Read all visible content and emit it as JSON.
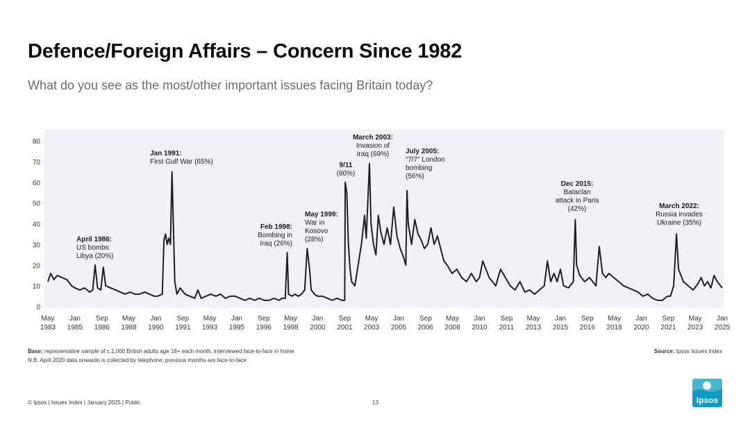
{
  "title": "Defence/Foreign Affairs – Concern Since 1982",
  "subtitle": "What do you see as the most/other important issues facing Britain today?",
  "colors": {
    "line": "#1f1f1f",
    "plot_bg": "#f1f1f6",
    "logo": "#0d9bc2"
  },
  "chart_data": {
    "type": "line",
    "title": "Defence/Foreign Affairs – Concern Since 1982",
    "ylim": [
      0,
      80
    ],
    "yticks": [
      "0",
      "10",
      "20",
      "30",
      "40",
      "50",
      "60",
      "70",
      "80"
    ],
    "xlim": [
      1983.33,
      2025.0
    ],
    "grid": false,
    "xticks": [
      {
        "month": "May",
        "year": "1983",
        "t": 1983.33
      },
      {
        "month": "Jan",
        "year": "1985",
        "t": 1985.0
      },
      {
        "month": "Sep",
        "year": "1986",
        "t": 1986.67
      },
      {
        "month": "May",
        "year": "1988",
        "t": 1988.33
      },
      {
        "month": "Jan",
        "year": "1990",
        "t": 1990.0
      },
      {
        "month": "Sep",
        "year": "1991",
        "t": 1991.67
      },
      {
        "month": "May",
        "year": "1993",
        "t": 1993.33
      },
      {
        "month": "Jan",
        "year": "1995",
        "t": 1995.0
      },
      {
        "month": "Sep",
        "year": "1996",
        "t": 1996.67
      },
      {
        "month": "May",
        "year": "1998",
        "t": 1998.33
      },
      {
        "month": "Jan",
        "year": "2000",
        "t": 2000.0
      },
      {
        "month": "Sep",
        "year": "2001",
        "t": 2001.67
      },
      {
        "month": "May",
        "year": "2003",
        "t": 2003.33
      },
      {
        "month": "Jan",
        "year": "2005",
        "t": 2005.0
      },
      {
        "month": "Sep",
        "year": "2006",
        "t": 2006.67
      },
      {
        "month": "May",
        "year": "2008",
        "t": 2008.33
      },
      {
        "month": "Jan",
        "year": "2010",
        "t": 2010.0
      },
      {
        "month": "Sep",
        "year": "2011",
        "t": 2011.67
      },
      {
        "month": "May",
        "year": "2013",
        "t": 2013.33
      },
      {
        "month": "Jan",
        "year": "2015",
        "t": 2015.0
      },
      {
        "month": "Sep",
        "year": "2016",
        "t": 2016.67
      },
      {
        "month": "May",
        "year": "2018",
        "t": 2018.33
      },
      {
        "month": "Jan",
        "year": "2020",
        "t": 2020.0
      },
      {
        "month": "Sep",
        "year": "2021",
        "t": 2021.67
      },
      {
        "month": "May",
        "year": "2023",
        "t": 2023.33
      },
      {
        "month": "Jan",
        "year": "2025",
        "t": 2025.0
      }
    ],
    "series": [
      {
        "name": "Defence/Foreign Affairs",
        "points": [
          [
            1983.33,
            12
          ],
          [
            1983.5,
            16
          ],
          [
            1983.7,
            13
          ],
          [
            1983.9,
            15
          ],
          [
            1984.2,
            14
          ],
          [
            1984.5,
            13
          ],
          [
            1984.8,
            10
          ],
          [
            1985.0,
            9
          ],
          [
            1985.3,
            8
          ],
          [
            1985.6,
            9
          ],
          [
            1985.9,
            7
          ],
          [
            1986.1,
            8
          ],
          [
            1986.25,
            20
          ],
          [
            1986.4,
            9
          ],
          [
            1986.6,
            8
          ],
          [
            1986.75,
            19
          ],
          [
            1986.9,
            10
          ],
          [
            1987.2,
            9
          ],
          [
            1987.5,
            8
          ],
          [
            1987.8,
            7
          ],
          [
            1988.1,
            6
          ],
          [
            1988.4,
            7
          ],
          [
            1988.7,
            6
          ],
          [
            1989.0,
            6
          ],
          [
            1989.3,
            7
          ],
          [
            1989.6,
            6
          ],
          [
            1989.9,
            5
          ],
          [
            1990.1,
            5
          ],
          [
            1990.4,
            6
          ],
          [
            1990.5,
            32
          ],
          [
            1990.6,
            35
          ],
          [
            1990.7,
            30
          ],
          [
            1990.8,
            33
          ],
          [
            1990.9,
            30
          ],
          [
            1991.0,
            65
          ],
          [
            1991.08,
            40
          ],
          [
            1991.17,
            12
          ],
          [
            1991.3,
            6
          ],
          [
            1991.5,
            9
          ],
          [
            1991.8,
            6
          ],
          [
            1992.1,
            5
          ],
          [
            1992.4,
            4
          ],
          [
            1992.6,
            8
          ],
          [
            1992.8,
            4
          ],
          [
            1993.1,
            5
          ],
          [
            1993.4,
            6
          ],
          [
            1993.7,
            5
          ],
          [
            1994.0,
            6
          ],
          [
            1994.3,
            4
          ],
          [
            1994.6,
            5
          ],
          [
            1994.9,
            5
          ],
          [
            1995.2,
            4
          ],
          [
            1995.5,
            3
          ],
          [
            1995.8,
            4
          ],
          [
            1996.1,
            3
          ],
          [
            1996.4,
            4
          ],
          [
            1996.7,
            3
          ],
          [
            1997.0,
            3
          ],
          [
            1997.3,
            4
          ],
          [
            1997.6,
            3
          ],
          [
            1997.8,
            4
          ],
          [
            1998.0,
            4
          ],
          [
            1998.12,
            26
          ],
          [
            1998.2,
            6
          ],
          [
            1998.4,
            5
          ],
          [
            1998.6,
            6
          ],
          [
            1998.8,
            5
          ],
          [
            1999.0,
            6
          ],
          [
            1999.2,
            8
          ],
          [
            1999.35,
            28
          ],
          [
            1999.5,
            18
          ],
          [
            1999.6,
            8
          ],
          [
            1999.8,
            6
          ],
          [
            2000.0,
            5
          ],
          [
            2000.3,
            5
          ],
          [
            2000.6,
            4
          ],
          [
            2000.9,
            3
          ],
          [
            2001.2,
            4
          ],
          [
            2001.5,
            3
          ],
          [
            2001.67,
            3
          ],
          [
            2001.7,
            60
          ],
          [
            2001.8,
            55
          ],
          [
            2001.9,
            30
          ],
          [
            2002.0,
            18
          ],
          [
            2002.1,
            12
          ],
          [
            2002.3,
            10
          ],
          [
            2002.5,
            20
          ],
          [
            2002.7,
            30
          ],
          [
            2002.9,
            44
          ],
          [
            2003.0,
            33
          ],
          [
            2003.2,
            69
          ],
          [
            2003.3,
            40
          ],
          [
            2003.45,
            30
          ],
          [
            2003.6,
            25
          ],
          [
            2003.75,
            44
          ],
          [
            2003.9,
            36
          ],
          [
            2004.1,
            30
          ],
          [
            2004.3,
            38
          ],
          [
            2004.5,
            30
          ],
          [
            2004.7,
            48
          ],
          [
            2004.9,
            34
          ],
          [
            2005.1,
            28
          ],
          [
            2005.3,
            24
          ],
          [
            2005.45,
            20
          ],
          [
            2005.52,
            56
          ],
          [
            2005.6,
            40
          ],
          [
            2005.8,
            30
          ],
          [
            2006.0,
            42
          ],
          [
            2006.2,
            35
          ],
          [
            2006.4,
            32
          ],
          [
            2006.6,
            28
          ],
          [
            2006.8,
            30
          ],
          [
            2007.0,
            38
          ],
          [
            2007.2,
            30
          ],
          [
            2007.4,
            34
          ],
          [
            2007.6,
            28
          ],
          [
            2007.8,
            22
          ],
          [
            2008.0,
            20
          ],
          [
            2008.3,
            16
          ],
          [
            2008.6,
            18
          ],
          [
            2008.9,
            14
          ],
          [
            2009.2,
            12
          ],
          [
            2009.5,
            16
          ],
          [
            2009.8,
            12
          ],
          [
            2010.0,
            14
          ],
          [
            2010.2,
            22
          ],
          [
            2010.4,
            18
          ],
          [
            2010.6,
            14
          ],
          [
            2010.8,
            12
          ],
          [
            2011.0,
            10
          ],
          [
            2011.3,
            18
          ],
          [
            2011.6,
            14
          ],
          [
            2011.9,
            10
          ],
          [
            2012.2,
            8
          ],
          [
            2012.5,
            12
          ],
          [
            2012.8,
            7
          ],
          [
            2013.1,
            8
          ],
          [
            2013.4,
            6
          ],
          [
            2013.7,
            8
          ],
          [
            2014.0,
            10
          ],
          [
            2014.2,
            22
          ],
          [
            2014.4,
            12
          ],
          [
            2014.6,
            16
          ],
          [
            2014.8,
            12
          ],
          [
            2015.0,
            18
          ],
          [
            2015.2,
            10
          ],
          [
            2015.5,
            9
          ],
          [
            2015.8,
            12
          ],
          [
            2015.92,
            42
          ],
          [
            2016.0,
            20
          ],
          [
            2016.2,
            15
          ],
          [
            2016.5,
            12
          ],
          [
            2016.8,
            14
          ],
          [
            2017.0,
            12
          ],
          [
            2017.2,
            10
          ],
          [
            2017.4,
            29
          ],
          [
            2017.6,
            16
          ],
          [
            2017.8,
            14
          ],
          [
            2018.0,
            16
          ],
          [
            2018.3,
            14
          ],
          [
            2018.6,
            12
          ],
          [
            2018.9,
            10
          ],
          [
            2019.2,
            9
          ],
          [
            2019.5,
            8
          ],
          [
            2019.8,
            7
          ],
          [
            2020.1,
            5
          ],
          [
            2020.4,
            6
          ],
          [
            2020.7,
            4
          ],
          [
            2021.0,
            3
          ],
          [
            2021.3,
            3
          ],
          [
            2021.6,
            5
          ],
          [
            2021.8,
            5
          ],
          [
            2022.0,
            10
          ],
          [
            2022.17,
            35
          ],
          [
            2022.3,
            18
          ],
          [
            2022.6,
            12
          ],
          [
            2022.9,
            10
          ],
          [
            2023.2,
            8
          ],
          [
            2023.5,
            11
          ],
          [
            2023.7,
            14
          ],
          [
            2023.9,
            10
          ],
          [
            2024.1,
            12
          ],
          [
            2024.3,
            9
          ],
          [
            2024.5,
            15
          ],
          [
            2024.7,
            12
          ],
          [
            2025.0,
            9
          ]
        ]
      }
    ],
    "annotations": [
      {
        "bold": "April 1986:",
        "lines": [
          "US bombs",
          "Libya (20%)"
        ],
        "align": "start"
      },
      {
        "bold": "Jan 1991:",
        "lines": [
          "First Gulf War (65%)"
        ],
        "align": "start"
      },
      {
        "bold": "Feb 1998:",
        "lines": [
          "Bombing in",
          "Iraq (26%)"
        ],
        "align": "end"
      },
      {
        "bold": "May 1999:",
        "lines": [
          "War in",
          "Kosovo",
          "(28%)"
        ],
        "align": "start"
      },
      {
        "bold": "9/11",
        "lines": [
          "(60%)"
        ],
        "align": "middle"
      },
      {
        "bold": "March 2003:",
        "lines": [
          "Invasion of",
          "Iraq (69%)"
        ],
        "align": "middle"
      },
      {
        "bold": "July 2005:",
        "lines": [
          "“7/7” London",
          "bombing",
          "(56%)"
        ],
        "align": "start"
      },
      {
        "bold": "Dec 2015:",
        "lines": [
          "Bataclan",
          "attack in Paris",
          "(42%)"
        ],
        "align": "middle"
      },
      {
        "bold": "March 2022:",
        "lines": [
          "Russia invades",
          "Ukraine (35%)"
        ],
        "align": "middle"
      }
    ]
  },
  "notes": {
    "base_label": "Base:",
    "base_text": " representative sample of c.1,000 British adults age 18+ each month, interviewed face-to-face in home",
    "telephone": "N.B. April 2020 data onwards is collected by telephone; previous months are face-to-face",
    "source_label": "Source:",
    "source_text": " Ipsos Issues Index"
  },
  "footer": "© Ipsos | Issues Index | January 2025 | Public",
  "page_number": "13",
  "logo_text": "Ipsos"
}
